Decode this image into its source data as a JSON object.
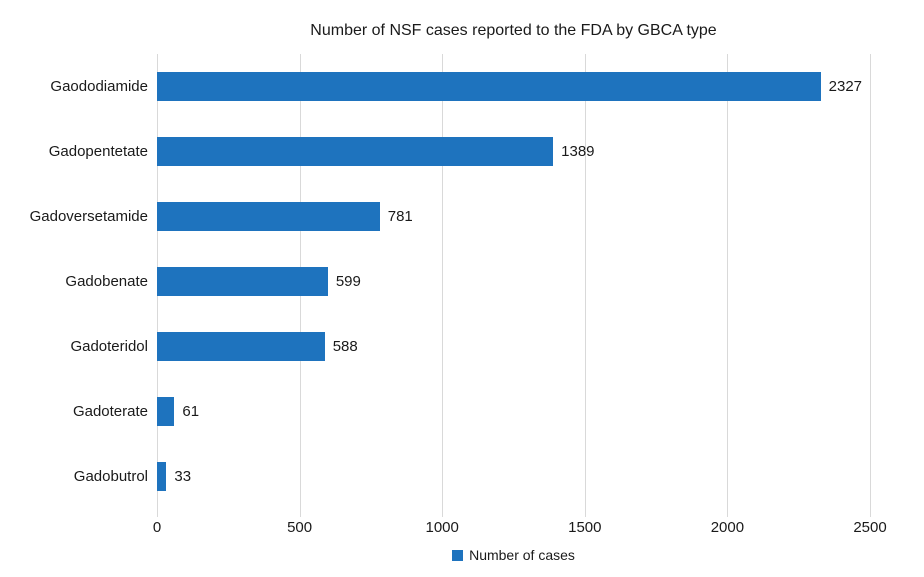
{
  "chart_data": {
    "type": "bar",
    "orientation": "horizontal",
    "title": "Number of NSF cases reported to the FDA by GBCA type",
    "categories": [
      "Gaododiamide",
      "Gadopentetate",
      "Gadoversetamide",
      "Gadobenate",
      "Gadoteridol",
      "Gadoterate",
      "Gadobutrol"
    ],
    "values": [
      2327,
      1389,
      781,
      599,
      588,
      61,
      33
    ],
    "xlim": [
      0,
      2500
    ],
    "x_ticks": [
      0,
      500,
      1000,
      1500,
      2000,
      2500
    ],
    "legend_label": "Number of cases",
    "legend_position": "bottom",
    "grid": "vertical",
    "bar_color": "#1E73BE",
    "gridline_color": "#d9d9d9",
    "background_color": "#ffffff",
    "text_color": "#1a1a1a"
  }
}
